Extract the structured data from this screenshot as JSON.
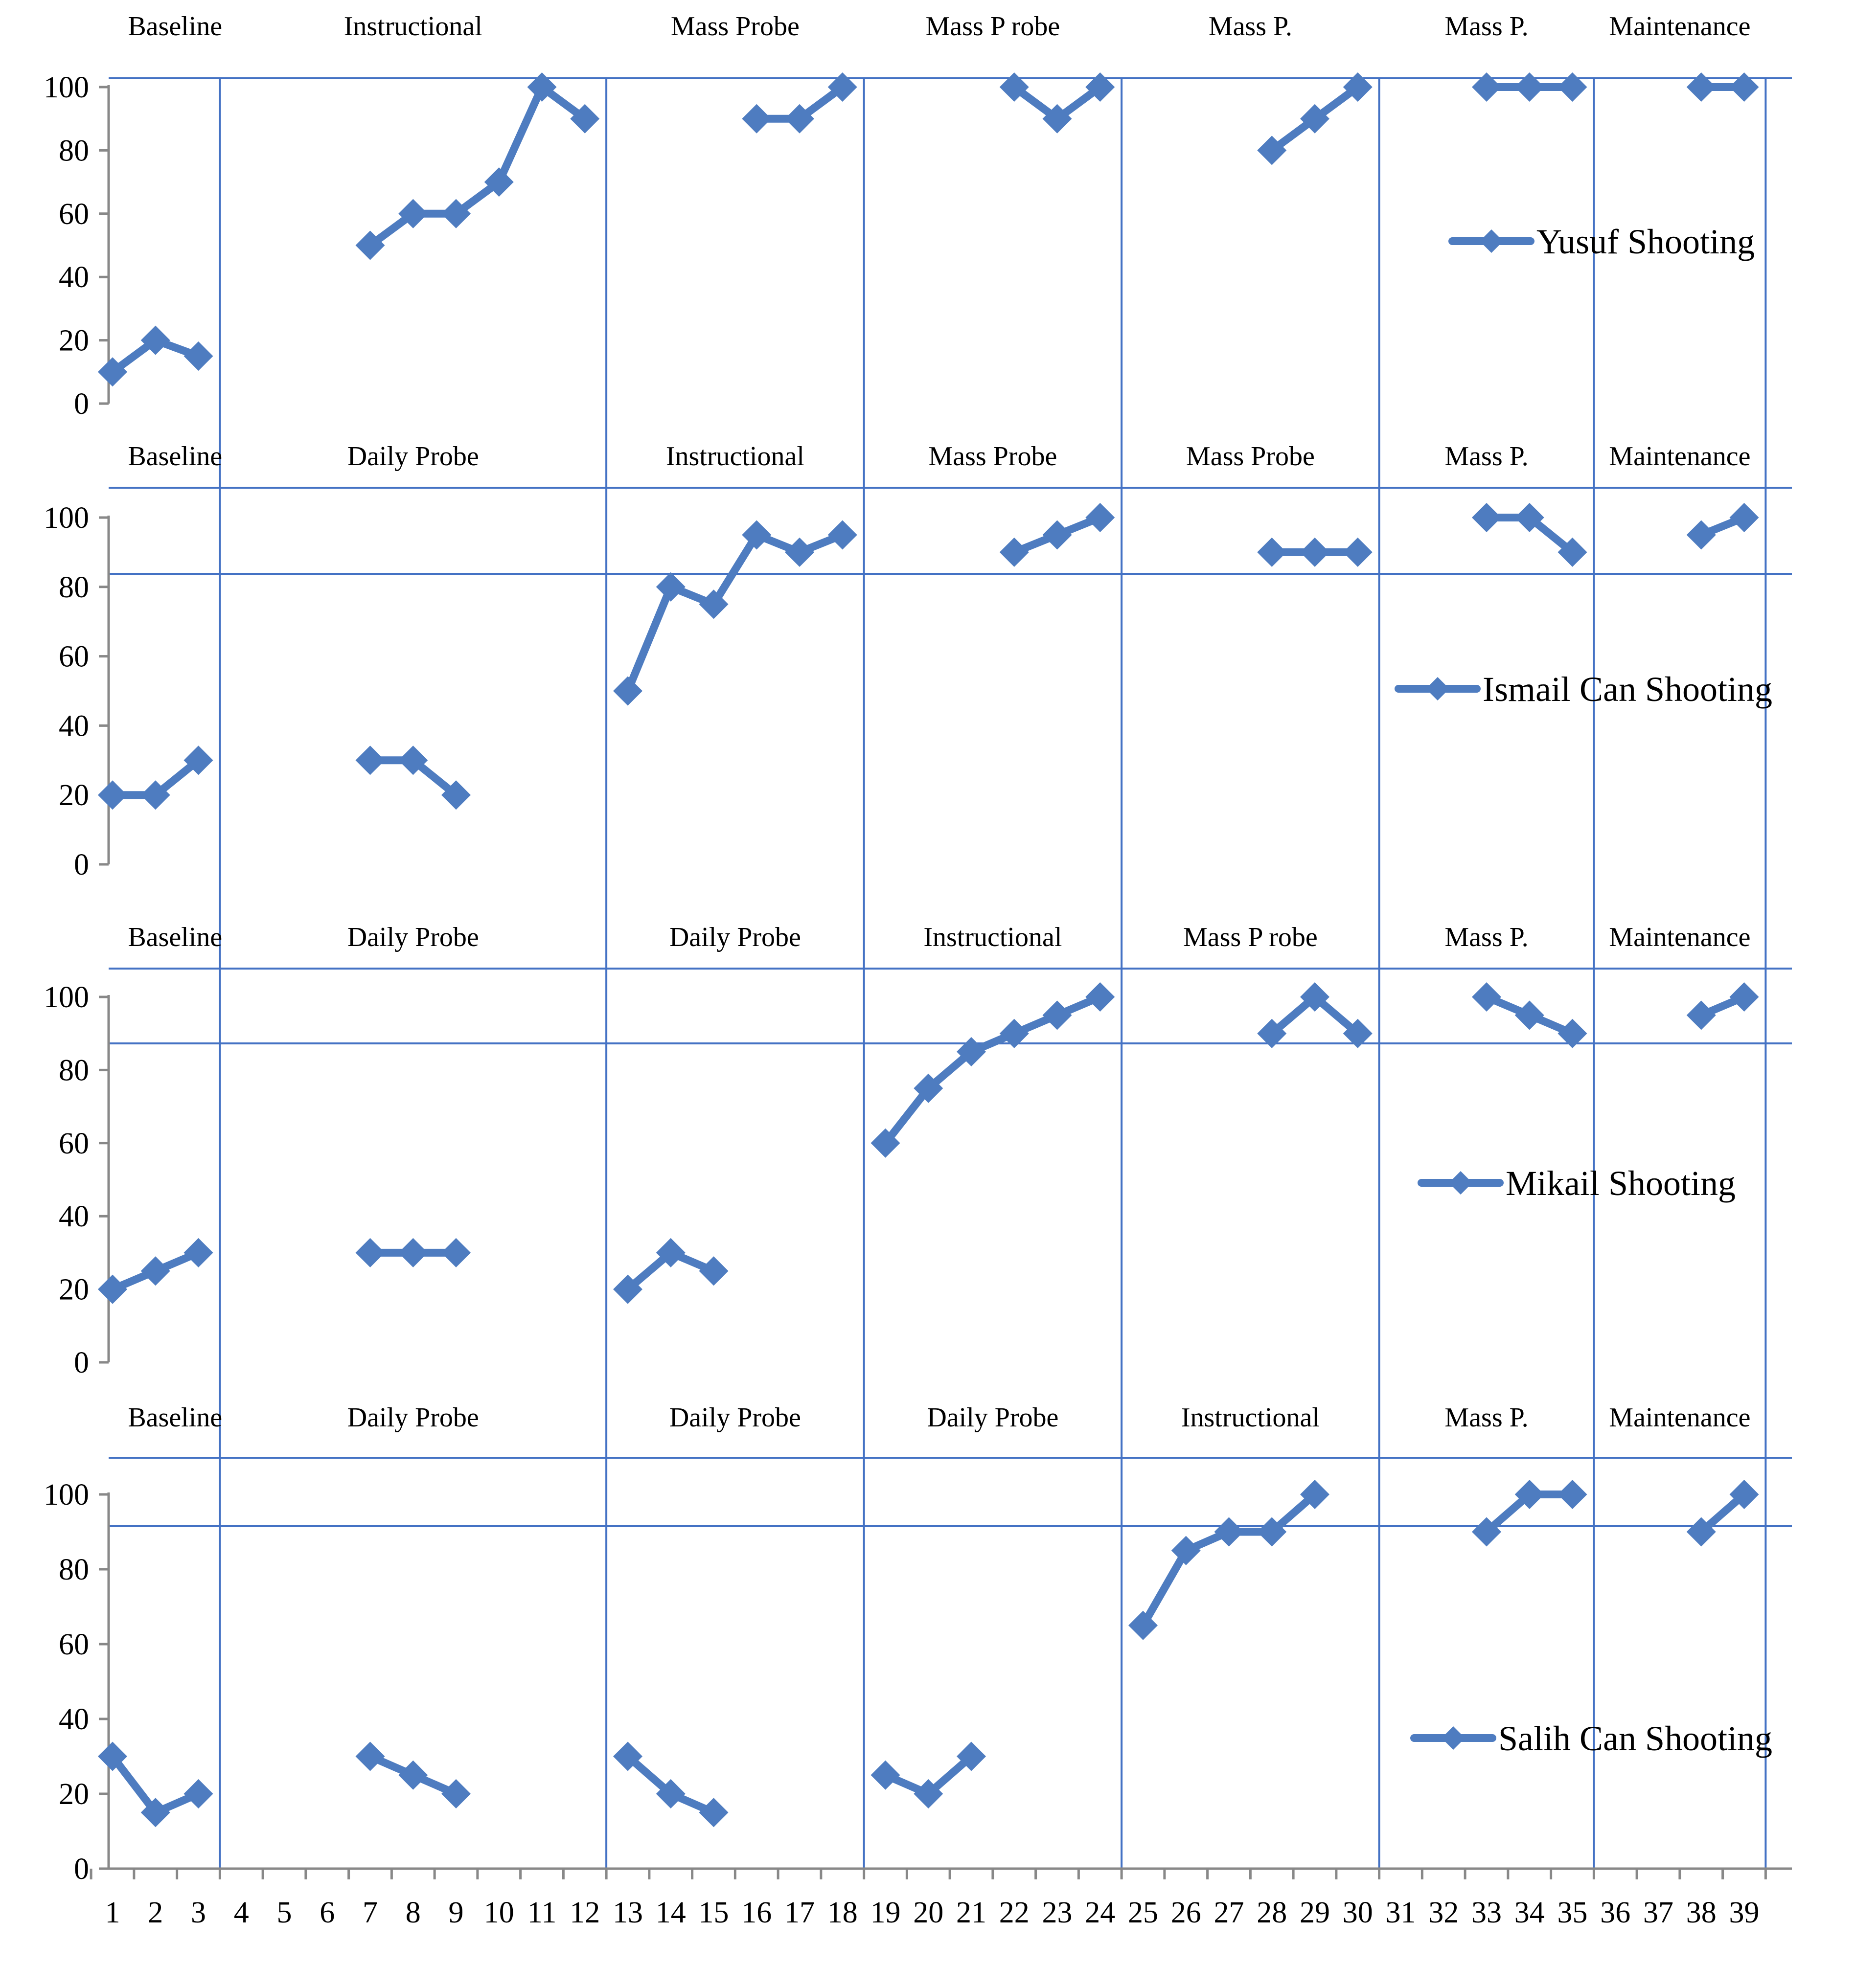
{
  "chart_data": {
    "type": "line",
    "ylim": [
      0,
      100
    ],
    "yticks": [
      0,
      20,
      40,
      60,
      80,
      100
    ],
    "x_ticks": [
      1,
      2,
      3,
      4,
      5,
      6,
      7,
      8,
      9,
      10,
      11,
      12,
      13,
      14,
      15,
      16,
      17,
      18,
      19,
      20,
      21,
      22,
      23,
      24,
      25,
      26,
      27,
      28,
      29,
      30,
      31,
      32,
      33,
      34,
      35,
      36,
      37,
      38,
      39
    ],
    "phase_boundaries": [
      3.5,
      12.5,
      18.5,
      24.5,
      30.5,
      35.5,
      39.5
    ],
    "line_color": "#4E7CC0",
    "divider_color": "#4472C4",
    "legend_position": "right",
    "panels": [
      {
        "series_name": "Yusuf Shooting",
        "phases": [
          "Baseline",
          "Instructional",
          "Mass Probe",
          "Mass P robe",
          "Mass P.",
          "Mass P.",
          "Maintenance"
        ],
        "data": [
          [
            1,
            10
          ],
          [
            2,
            20
          ],
          [
            3,
            15
          ],
          [
            7,
            50
          ],
          [
            8,
            60
          ],
          [
            9,
            60
          ],
          [
            10,
            70
          ],
          [
            11,
            100
          ],
          [
            12,
            90
          ],
          [
            16,
            90
          ],
          [
            17,
            90
          ],
          [
            18,
            100
          ],
          [
            22,
            100
          ],
          [
            23,
            90
          ],
          [
            24,
            100
          ],
          [
            28,
            80
          ],
          [
            29,
            90
          ],
          [
            30,
            100
          ],
          [
            33,
            100
          ],
          [
            34,
            100
          ],
          [
            35,
            100
          ],
          [
            38,
            100
          ],
          [
            39,
            100
          ]
        ]
      },
      {
        "series_name": "Ismail Can Shooting",
        "phases": [
          "Baseline",
          "Daily Probe",
          "Instructional",
          "Mass Probe",
          "Mass Probe",
          "Mass P.",
          "Maintenance"
        ],
        "data": [
          [
            1,
            20
          ],
          [
            2,
            20
          ],
          [
            3,
            30
          ],
          [
            7,
            30
          ],
          [
            8,
            30
          ],
          [
            9,
            20
          ],
          [
            13,
            50
          ],
          [
            14,
            80
          ],
          [
            15,
            75
          ],
          [
            16,
            95
          ],
          [
            17,
            90
          ],
          [
            18,
            95
          ],
          [
            22,
            90
          ],
          [
            23,
            95
          ],
          [
            24,
            100
          ],
          [
            28,
            90
          ],
          [
            29,
            90
          ],
          [
            30,
            90
          ],
          [
            33,
            100
          ],
          [
            34,
            100
          ],
          [
            35,
            90
          ],
          [
            38,
            95
          ],
          [
            39,
            100
          ]
        ]
      },
      {
        "series_name": "Mikail Shooting",
        "phases": [
          "Baseline",
          "Daily Probe",
          "Daily Probe",
          "Instructional",
          "Mass P robe",
          "Mass P.",
          "Maintenance"
        ],
        "data": [
          [
            1,
            20
          ],
          [
            2,
            25
          ],
          [
            3,
            30
          ],
          [
            7,
            30
          ],
          [
            8,
            30
          ],
          [
            9,
            30
          ],
          [
            13,
            20
          ],
          [
            14,
            30
          ],
          [
            15,
            25
          ],
          [
            19,
            60
          ],
          [
            20,
            75
          ],
          [
            21,
            85
          ],
          [
            22,
            90
          ],
          [
            23,
            95
          ],
          [
            24,
            100
          ],
          [
            28,
            90
          ],
          [
            29,
            100
          ],
          [
            30,
            90
          ],
          [
            33,
            100
          ],
          [
            34,
            95
          ],
          [
            35,
            90
          ],
          [
            38,
            95
          ],
          [
            39,
            100
          ]
        ]
      },
      {
        "series_name": "Salih Can Shooting",
        "phases": [
          "Baseline",
          "Daily Probe",
          "Daily Probe",
          "Daily Probe",
          "Instructional",
          "Mass P.",
          "Maintenance"
        ],
        "data": [
          [
            1,
            30
          ],
          [
            2,
            15
          ],
          [
            3,
            20
          ],
          [
            7,
            30
          ],
          [
            8,
            25
          ],
          [
            9,
            20
          ],
          [
            13,
            30
          ],
          [
            14,
            20
          ],
          [
            15,
            15
          ],
          [
            19,
            25
          ],
          [
            20,
            20
          ],
          [
            21,
            30
          ],
          [
            25,
            65
          ],
          [
            26,
            85
          ],
          [
            27,
            90
          ],
          [
            28,
            90
          ],
          [
            29,
            100
          ],
          [
            33,
            90
          ],
          [
            34,
            100
          ],
          [
            35,
            100
          ],
          [
            38,
            90
          ],
          [
            39,
            100
          ]
        ]
      }
    ]
  }
}
